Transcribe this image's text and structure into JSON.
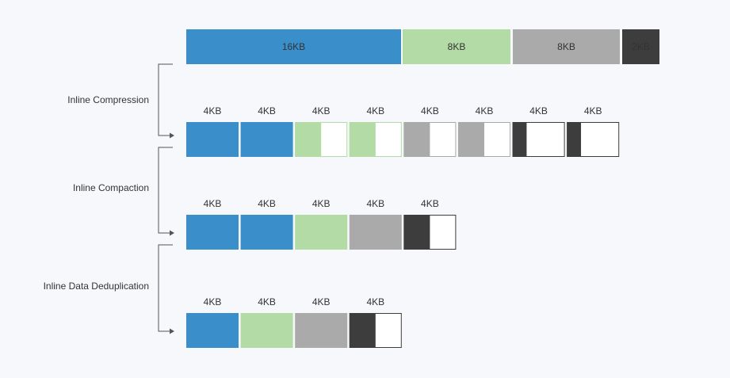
{
  "top_row": {
    "segments": [
      "16KB",
      "8KB",
      "8KB",
      "2KB"
    ]
  },
  "steps": [
    "Inline Compression",
    "Inline Compaction",
    "Inline Data Deduplication"
  ],
  "rows": [
    {
      "labels": [
        "4KB",
        "4KB",
        "4KB",
        "4KB",
        "4KB",
        "4KB",
        "4KB",
        "4KB"
      ]
    },
    {
      "labels": [
        "4KB",
        "4KB",
        "4KB",
        "4KB",
        "4KB"
      ]
    },
    {
      "labels": [
        "4KB",
        "4KB",
        "4KB",
        "4KB"
      ]
    }
  ]
}
